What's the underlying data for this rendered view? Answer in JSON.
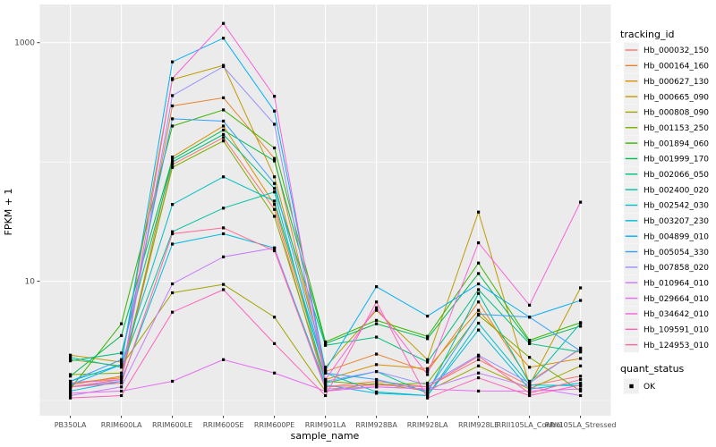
{
  "chart_data": {
    "type": "line",
    "title": "",
    "xlabel": "sample_name",
    "ylabel": "FPKM + 1",
    "y_scale": "log10",
    "y_major_ticks": [
      10,
      1000
    ],
    "y_minor_gridlines": [
      1,
      100
    ],
    "ylim": [
      0.93,
      2000
    ],
    "grid": true,
    "legend_position": "right",
    "x_categories": [
      "PB350LA",
      "RRIM600LA",
      "RRIM600LE",
      "RRIM600SE",
      "RRIM600PE",
      "RRIM901LA",
      "RRIM928BA",
      "RRIM928LA",
      "RRIM928LE",
      "RRII105LA_Control",
      "RRII105LA_Stressed"
    ],
    "points": {
      "shape": "square",
      "color": "#000000",
      "label": "OK"
    },
    "legend_color_title": "tracking_id",
    "legend_shape_title": "quant_status",
    "legend_shape_items": [
      "OK"
    ],
    "series": [
      {
        "name": "Hb_000032_150",
        "color": "#F8766D",
        "values": [
          1.3,
          1.5,
          95,
          160,
          40,
          1.3,
          1.45,
          1.3,
          2.2,
          1.33,
          1.6
        ]
      },
      {
        "name": "Hb_000164_160",
        "color": "#EA8331",
        "values": [
          1.35,
          1.6,
          295,
          345,
          107,
          1.75,
          2.45,
          1.75,
          6.7,
          1.45,
          2.7
        ]
      },
      {
        "name": "Hb_000627_130",
        "color": "#D89000",
        "values": [
          1.4,
          1.55,
          110,
          200,
          44,
          1.5,
          2.0,
          1.85,
          5.7,
          1.9,
          2.25
        ]
      },
      {
        "name": "Hb_000665_090",
        "color": "#C09B00",
        "values": [
          2.4,
          2.1,
          490,
          645,
          75,
          1.9,
          5.7,
          2.2,
          38,
          1.35,
          8.8
        ]
      },
      {
        "name": "Hb_000808_090",
        "color": "#A3A500",
        "values": [
          2.2,
          1.95,
          8.0,
          9.4,
          5.0,
          1.2,
          1.4,
          1.2,
          1.95,
          1.25,
          1.95
        ]
      },
      {
        "name": "Hb_001153_250",
        "color": "#7CAE00",
        "values": [
          1.65,
          1.7,
          90,
          150,
          35,
          1.45,
          1.35,
          1.4,
          5.2,
          2.3,
          1.2
        ]
      },
      {
        "name": "Hb_001894_060",
        "color": "#39B600",
        "values": [
          1.25,
          4.4,
          200,
          273,
          131,
          3.1,
          4.7,
          3.45,
          14.2,
          3.2,
          4.5
        ]
      },
      {
        "name": "Hb_001999_170",
        "color": "#00BB4E",
        "values": [
          1.6,
          3.5,
          105,
          185,
          102,
          3.0,
          4.4,
          3.3,
          11.6,
          3.1,
          4.2
        ]
      },
      {
        "name": "Hb_002066_050",
        "color": "#00BF7D",
        "values": [
          2.15,
          2.5,
          100,
          170,
          60,
          2.9,
          3.4,
          2.1,
          8.5,
          3.0,
          2.55
        ]
      },
      {
        "name": "Hb_002400_020",
        "color": "#00C1A3",
        "values": [
          2.3,
          1.9,
          26,
          41,
          56,
          1.4,
          1.75,
          1.15,
          7.9,
          1.4,
          4.45
        ]
      },
      {
        "name": "Hb_002542_030",
        "color": "#00BFC4",
        "values": [
          1.45,
          2.0,
          44,
          75,
          47,
          1.7,
          1.18,
          1.1,
          4.45,
          1.35,
          1.33
        ]
      },
      {
        "name": "Hb_003207_230",
        "color": "#00BAE0",
        "values": [
          1.2,
          1.45,
          20.5,
          25,
          19,
          1.35,
          1.15,
          1.1,
          3.9,
          1.25,
          1.4
        ]
      },
      {
        "name": "Hb_004899_010",
        "color": "#00B0F6",
        "values": [
          1.35,
          2.0,
          690,
          1090,
          267,
          1.8,
          9.0,
          5.1,
          9.5,
          5.0,
          6.9
        ]
      },
      {
        "name": "Hb_005054_330",
        "color": "#35A2FF",
        "values": [
          1.45,
          2.2,
          230,
          220,
          66,
          1.7,
          1.5,
          1.2,
          5.3,
          5.0,
          2.6
        ]
      },
      {
        "name": "Hb_007858_020",
        "color": "#9590FF",
        "values": [
          1.3,
          1.45,
          360,
          630,
          207,
          1.45,
          1.75,
          1.35,
          2.4,
          1.4,
          2.75
        ]
      },
      {
        "name": "Hb_010964_010",
        "color": "#C77CFF",
        "values": [
          1.1,
          1.3,
          9.5,
          16,
          19,
          1.25,
          1.3,
          1.25,
          1.7,
          1.3,
          1.1
        ]
      },
      {
        "name": "Hb_029664_010",
        "color": "#E76BF3",
        "values": [
          1.15,
          1.2,
          1.45,
          2.2,
          1.7,
          1.2,
          1.3,
          1.25,
          1.2,
          1.2,
          1.25
        ]
      },
      {
        "name": "Hb_034642_010",
        "color": "#FA62DB",
        "values": [
          1.4,
          1.5,
          500,
          1450,
          355,
          1.5,
          6.0,
          1.65,
          21,
          6.3,
          46
        ]
      },
      {
        "name": "Hb_109591_010",
        "color": "#FF62BC",
        "values": [
          1.05,
          1.1,
          5.5,
          8.5,
          3.0,
          1.1,
          6.7,
          1.05,
          1.55,
          1.1,
          1.35
        ]
      },
      {
        "name": "Hb_124953_010",
        "color": "#FF6A98",
        "values": [
          1.3,
          1.4,
          25,
          28,
          18,
          1.3,
          1.35,
          1.3,
          2.35,
          1.15,
          1.5
        ]
      }
    ]
  },
  "colors": {
    "figure_bg": "#FFFFFF",
    "panel_bg": "#EBEBEB",
    "gridline": "#FFFFFF",
    "axis_text": "#4D4D4D",
    "title_text": "#000000",
    "tick_mark": "#333333",
    "legend_key_bg": "#F0F0F0",
    "point": "#000000"
  }
}
